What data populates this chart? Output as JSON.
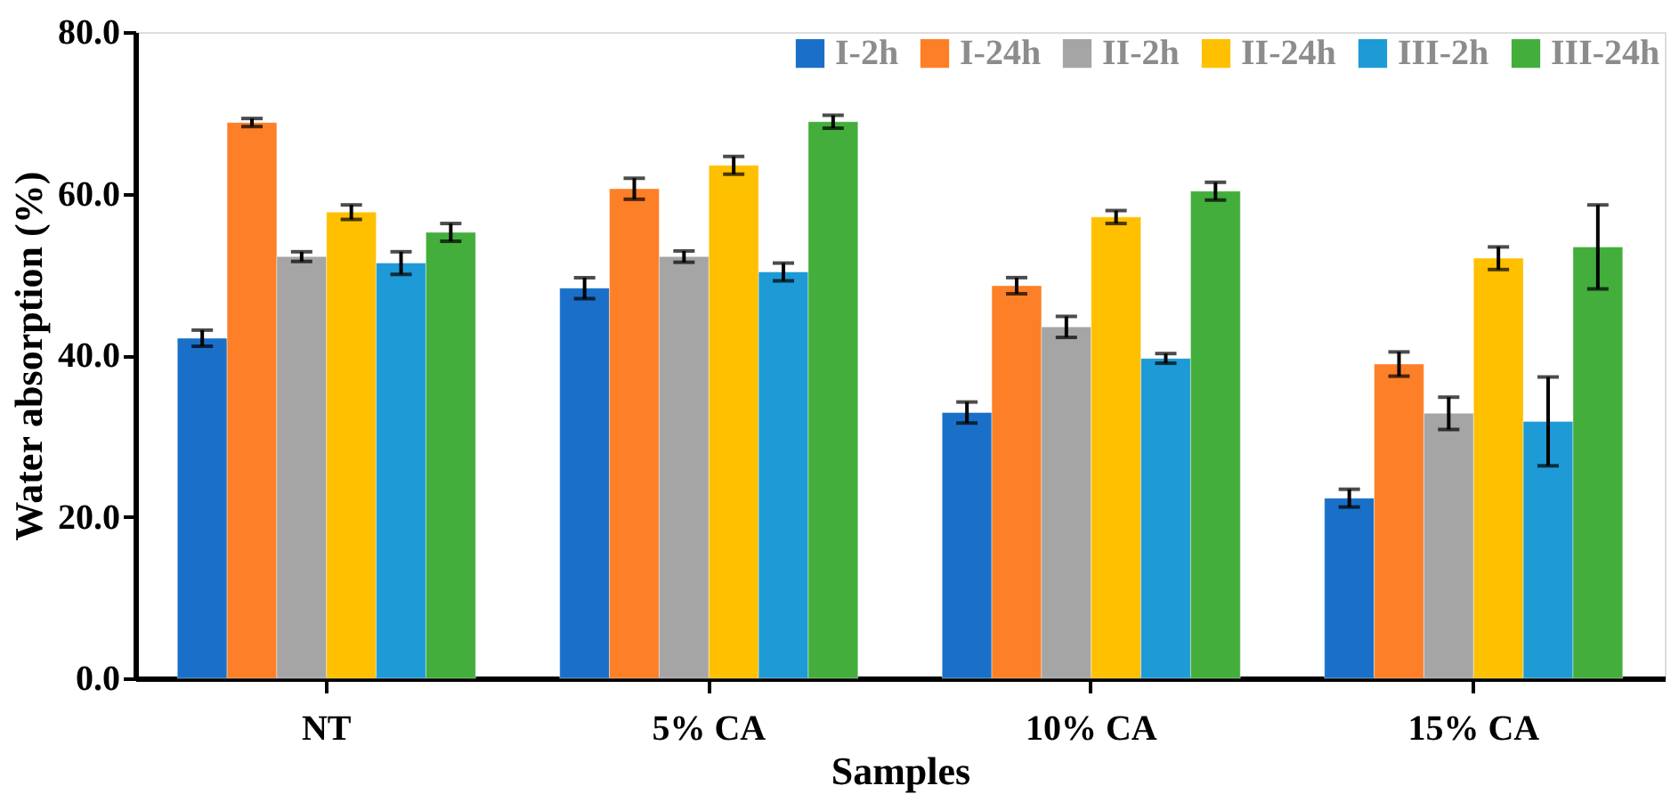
{
  "chart_data": {
    "type": "bar",
    "xlabel": "Samples",
    "ylabel": "Water absorption (%)",
    "categories": [
      "NT",
      "5% CA",
      "10% CA",
      "15% CA"
    ],
    "series": [
      {
        "name": "I-2h",
        "color": "#1a70c8",
        "values": [
          42.1,
          48.3,
          32.9,
          22.3
        ],
        "errors": [
          1.0,
          1.3,
          1.3,
          1.1
        ]
      },
      {
        "name": "I-24h",
        "color": "#fd7f28",
        "values": [
          68.8,
          60.6,
          48.6,
          38.9
        ],
        "errors": [
          0.5,
          1.3,
          1.0,
          1.5
        ]
      },
      {
        "name": "II-2h",
        "color": "#a5a5a5",
        "values": [
          52.2,
          52.2,
          43.5,
          32.8
        ],
        "errors": [
          0.6,
          0.7,
          1.3,
          2.0
        ]
      },
      {
        "name": "II-24h",
        "color": "#ffc000",
        "values": [
          57.7,
          63.5,
          57.1,
          52.0
        ],
        "errors": [
          0.9,
          1.1,
          0.8,
          1.4
        ]
      },
      {
        "name": "III-2h",
        "color": "#1e9ad6",
        "values": [
          51.4,
          50.3,
          39.6,
          31.8
        ],
        "errors": [
          1.4,
          1.1,
          0.6,
          5.5
        ]
      },
      {
        "name": "III-24h",
        "color": "#43ae3c",
        "values": [
          55.2,
          68.9,
          60.3,
          53.4
        ],
        "errors": [
          1.1,
          0.8,
          1.1,
          5.2
        ]
      }
    ],
    "ylim": [
      0,
      80
    ],
    "yticks": [
      {
        "value": 0,
        "label": "0.0"
      },
      {
        "value": 20,
        "label": "20.0"
      },
      {
        "value": 40,
        "label": "40.0"
      },
      {
        "value": 60,
        "label": "60.0"
      },
      {
        "value": 80,
        "label": "80.0"
      }
    ],
    "grid": false,
    "legend": "top right"
  }
}
